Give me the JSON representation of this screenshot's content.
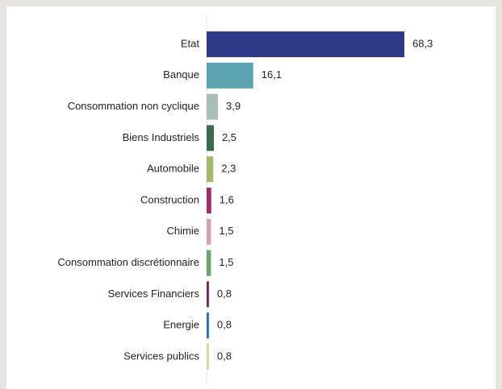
{
  "chart_data": {
    "type": "hbar",
    "categories": [
      "Etat",
      "Banque",
      "Consommation non cyclique",
      "Biens Industriels",
      "Automobile",
      "Construction",
      "Chimie",
      "Consommation discrétionnaire",
      "Services Financiers",
      "Energie",
      "Services publics"
    ],
    "values": [
      68.3,
      16.1,
      3.9,
      2.5,
      2.3,
      1.6,
      1.5,
      1.5,
      0.8,
      0.8,
      0.8
    ],
    "value_labels": [
      "68,3",
      "16,1",
      "3,9",
      "2,5",
      "2,3",
      "1,6",
      "1,5",
      "1,5",
      "0,8",
      "0,8",
      "0,8"
    ],
    "colors": [
      "#2e3a87",
      "#5ba3b0",
      "#a9bfb5",
      "#3d6b4a",
      "#a3b86a",
      "#9e2b6a",
      "#d4a5a8",
      "#6aa36a",
      "#6a2b5a",
      "#2f6fa8",
      "#d8d8a6"
    ]
  }
}
